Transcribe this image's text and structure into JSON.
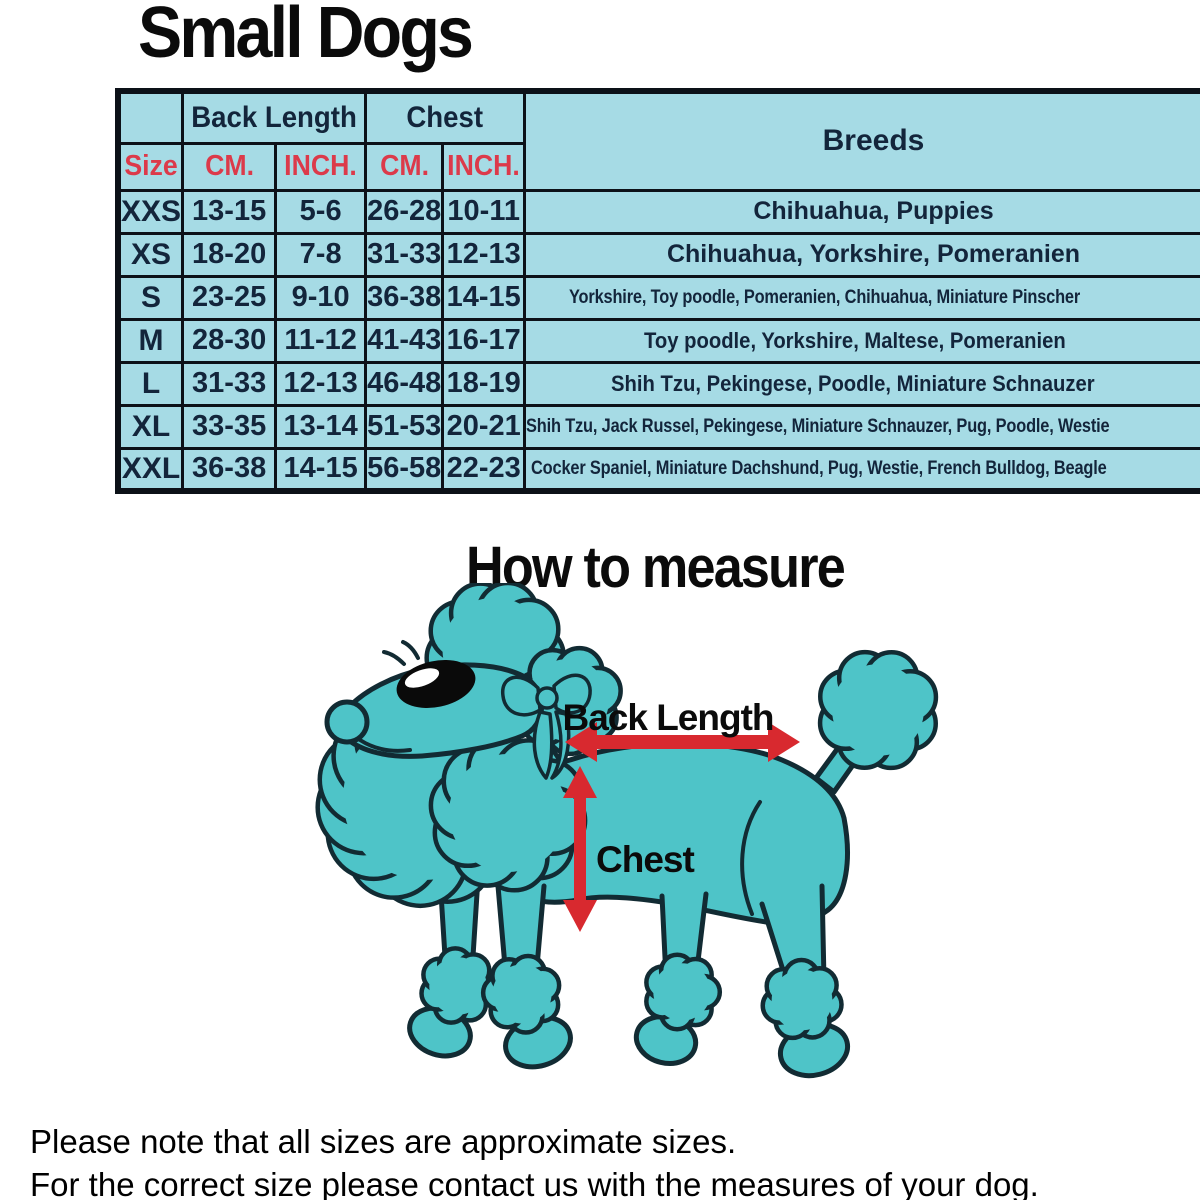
{
  "page": {
    "title": "Small Dogs",
    "how_to_measure_title": "How to measure",
    "notes": [
      "Please note that all sizes are approximate sizes.",
      "For the correct size please contact us with the measures of your dog."
    ]
  },
  "size_table": {
    "group_headers": {
      "back_length": "Back Length",
      "chest": "Chest",
      "breeds": "Breeds"
    },
    "column_headers": {
      "size": "Size",
      "cm": "CM.",
      "inch": "INCH.",
      "cm2": "CM.",
      "inch2": "INCH."
    },
    "rows": [
      {
        "size": "XXS",
        "back_cm": "13-15",
        "back_inch": "5-6",
        "chest_cm": "26-28",
        "chest_inch": "10-11",
        "breeds": "Chihuahua, Puppies"
      },
      {
        "size": "XS",
        "back_cm": "18-20",
        "back_inch": "7-8",
        "chest_cm": "31-33",
        "chest_inch": "12-13",
        "breeds": "Chihuahua, Yorkshire, Pomeranien"
      },
      {
        "size": "S",
        "back_cm": "23-25",
        "back_inch": "9-10",
        "chest_cm": "36-38",
        "chest_inch": "14-15",
        "breeds": "Yorkshire, Toy poodle, Pomeranien, Chihuahua, Miniature Pinscher"
      },
      {
        "size": "M",
        "back_cm": "28-30",
        "back_inch": "11-12",
        "chest_cm": "41-43",
        "chest_inch": "16-17",
        "breeds": "Toy poodle, Yorkshire, Maltese, Pomeranien"
      },
      {
        "size": "L",
        "back_cm": "31-33",
        "back_inch": "12-13",
        "chest_cm": "46-48",
        "chest_inch": "18-19",
        "breeds": "Shih Tzu, Pekingese, Poodle, Miniature Schnauzer"
      },
      {
        "size": "XL",
        "back_cm": "33-35",
        "back_inch": "13-14",
        "chest_cm": "51-53",
        "chest_inch": "20-21",
        "breeds": "Shih Tzu, Jack Russel, Pekingese, Miniature Schnauzer, Pug, Poodle, Westie"
      },
      {
        "size": "XXL",
        "back_cm": "36-38",
        "back_inch": "14-15",
        "chest_cm": "56-58",
        "chest_inch": "22-23",
        "breeds": "Cocker Spaniel, Miniature Dachshund, Pug, Westie, French Bulldog, Beagle"
      }
    ]
  },
  "diagram": {
    "back_length_label": "Back Length",
    "chest_label": "Chest"
  },
  "colors": {
    "table_bg": "#a6dbe5",
    "border": "#0c1118",
    "header_red": "#dc3a4a",
    "cell_text": "#13253b",
    "dog_fill": "#4ec4c8",
    "dog_outline": "#122b33",
    "arrow_red": "#d8292f"
  }
}
